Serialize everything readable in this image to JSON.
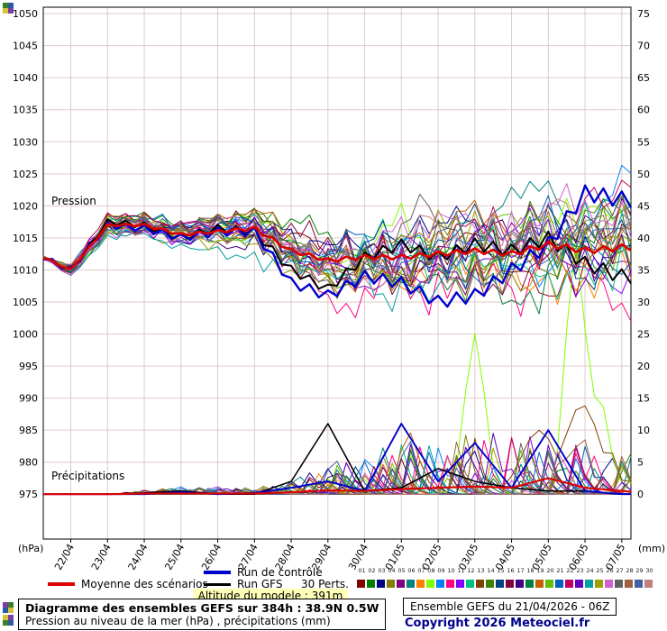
{
  "legend": {
    "mean": "Moyenne des scénarios",
    "control": "Run de contrôle",
    "gfs": "Run GFS",
    "perts": "30 Perts."
  },
  "footer": {
    "altitude": "Altitude du modele : 391m",
    "title_line1": "Diagramme des ensembles GEFS sur 384h : 38.9N 0.5W",
    "title_line2": "Pression au niveau de la mer (hPa) , précipitations (mm)",
    "run_info": "Ensemble GEFS du 21/04/2026 - 06Z",
    "copyright": "Copyright 2026 Meteociel.fr"
  },
  "chart_data": {
    "type": "line",
    "title": "",
    "pressure_label": "Pression",
    "precip_label": "Précipitations",
    "unit_left": "(hPa)",
    "unit_right": "(mm)",
    "ylim_left": [
      975,
      1050
    ],
    "ylim_right": [
      0,
      75
    ],
    "ytick_step": 5,
    "grid": true,
    "grid_color": "#e0caca",
    "categories": [
      "22/04",
      "23/04",
      "24/04",
      "25/04",
      "26/04",
      "27/04",
      "28/04",
      "29/04",
      "30/04",
      "01/05",
      "02/05",
      "03/05",
      "04/05",
      "05/05",
      "06/05",
      "07/05"
    ],
    "hours_max": 384,
    "anchors_hours": [
      0,
      18,
      42,
      66,
      90,
      114,
      138,
      162,
      186,
      210,
      234,
      258,
      282,
      306,
      330,
      354,
      378,
      384
    ],
    "series": {
      "mean": {
        "name": "Moyenne des scénarios",
        "color": "#dd0000",
        "pressure": [
          1012,
          1010,
          1017,
          1017,
          1015.5,
          1016,
          1016.5,
          1013,
          1011.5,
          1012,
          1012,
          1012.5,
          1013,
          1012.5,
          1014,
          1013,
          1013.5,
          1013.5
        ],
        "precip": [
          0,
          0,
          0,
          0.1,
          0.1,
          0.1,
          0.1,
          0.3,
          0.6,
          0.5,
          0.8,
          1,
          1.2,
          1,
          2.5,
          1,
          0.5,
          0.4
        ]
      },
      "control": {
        "name": "Run de contrôle",
        "color": "#0000cc",
        "pressure": [
          1012,
          1010,
          1017,
          1016.5,
          1015,
          1016,
          1016,
          1008,
          1006,
          1009,
          1008,
          1005,
          1006,
          1010,
          1014,
          1022,
          1021,
          1021
        ],
        "precip": [
          0,
          0,
          0,
          0,
          0.3,
          0,
          0.2,
          1,
          2,
          0.5,
          11,
          2,
          8,
          1,
          10,
          0.5,
          0,
          0
        ]
      },
      "gfs": {
        "name": "Run GFS",
        "color": "#000000",
        "pressure": [
          1012,
          1010,
          1017.5,
          1017,
          1015,
          1016.5,
          1016,
          1010,
          1007,
          1012,
          1014,
          1012,
          1014,
          1013,
          1015,
          1011,
          1009,
          1009
        ],
        "precip": [
          0,
          0,
          0,
          0.2,
          0.5,
          0,
          0,
          2,
          11,
          0.5,
          1,
          4,
          2,
          1,
          0.5,
          0.5,
          0,
          0
        ]
      }
    },
    "perturbations": {
      "count": 30,
      "labels": [
        "01",
        "02",
        "03",
        "04",
        "05",
        "06",
        "07",
        "08",
        "09",
        "10",
        "11",
        "12",
        "13",
        "14",
        "15",
        "16",
        "17",
        "18",
        "19",
        "20",
        "21",
        "22",
        "23",
        "24",
        "25",
        "26",
        "27",
        "28",
        "29",
        "30"
      ],
      "colors": [
        "#800000",
        "#008000",
        "#000080",
        "#808000",
        "#800080",
        "#008080",
        "#ff8000",
        "#80ff00",
        "#0080ff",
        "#ff0080",
        "#8000ff",
        "#00c080",
        "#804000",
        "#408000",
        "#004080",
        "#800040",
        "#400080",
        "#008040",
        "#c06000",
        "#60c000",
        "#0060c0",
        "#c00060",
        "#6000c0",
        "#00a0a0",
        "#a0a000",
        "#d060d0",
        "#606060",
        "#a06040",
        "#4060a0",
        "#c08080"
      ],
      "spread_envelope": [
        0.3,
        0.6,
        1,
        1.2,
        1.5,
        1.8,
        2,
        2.5,
        3,
        3.5,
        4,
        4.3,
        4.6,
        4.8,
        5,
        5.2,
        5.5,
        5.5
      ],
      "precip_envelope": [
        0,
        0,
        0,
        0.3,
        0.5,
        0.5,
        0.5,
        1,
        2,
        3,
        4,
        4,
        5,
        5,
        4,
        4,
        3,
        3
      ],
      "special_precip": {
        "7": {
          "bumps": [
            [
              282,
              25,
              9
            ],
            [
              348,
              40,
              9
            ],
            [
              362,
              16,
              10
            ]
          ]
        },
        "12": {
          "bumps": [
            [
              324,
              10,
              16
            ],
            [
              352,
              14,
              16
            ]
          ]
        }
      }
    }
  }
}
